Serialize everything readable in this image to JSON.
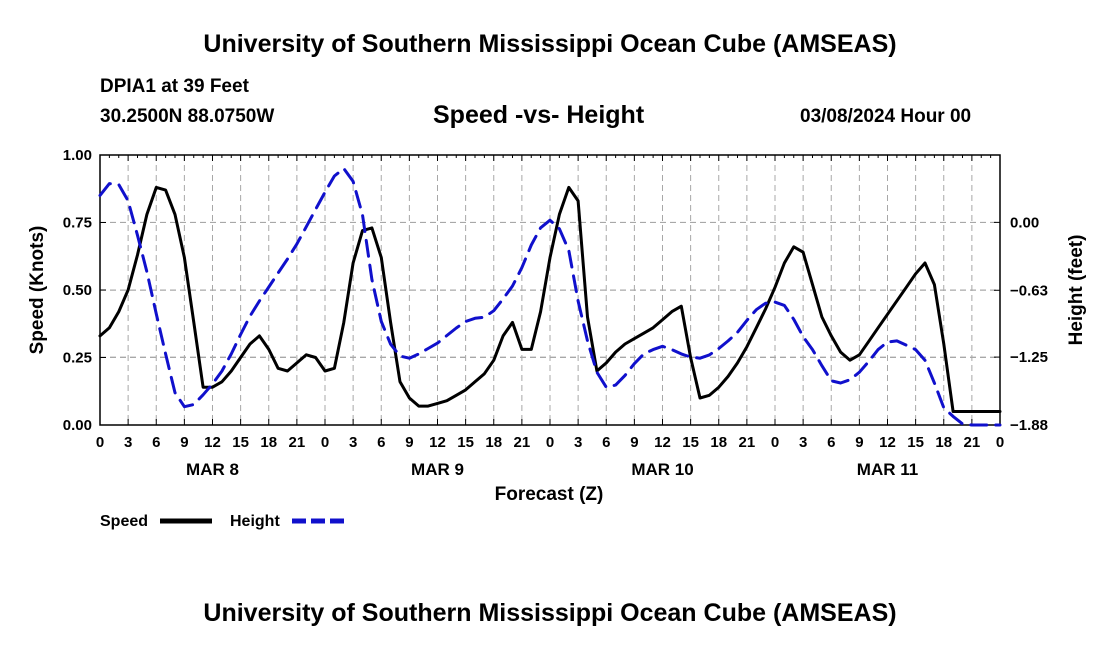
{
  "header": {
    "main_title": "University of Southern Mississippi Ocean Cube (AMSEAS)",
    "station": "DPIA1 at 39 Feet",
    "coords": "30.2500N  88.0750W",
    "date": "03/08/2024 Hour 00",
    "bottom_title": "University of Southern Mississippi Ocean Cube (AMSEAS)"
  },
  "chart_data": {
    "type": "line",
    "title": "Speed -vs- Height",
    "xlabel": "Forecast (Z)",
    "ylabel_left": "Speed (Knots)",
    "ylabel_right": "Height (feet)",
    "xlim": [
      0,
      96
    ],
    "ylim_left": [
      0,
      1.0
    ],
    "ylim_right": [
      -1.88,
      0.625
    ],
    "grid": true,
    "x_ticks": [
      0,
      3,
      6,
      9,
      12,
      15,
      18,
      21,
      24,
      27,
      30,
      33,
      36,
      39,
      42,
      45,
      48,
      51,
      54,
      57,
      60,
      63,
      66,
      69,
      72,
      75,
      78,
      81,
      84,
      87,
      90,
      93,
      96
    ],
    "x_tick_labels": [
      "0",
      "3",
      "6",
      "9",
      "12",
      "15",
      "18",
      "21",
      "0",
      "3",
      "6",
      "9",
      "12",
      "15",
      "18",
      "21",
      "0",
      "3",
      "6",
      "9",
      "12",
      "15",
      "18",
      "21",
      "0",
      "3",
      "6",
      "9",
      "12",
      "15",
      "18",
      "21",
      "0"
    ],
    "day_labels": [
      {
        "x": 12,
        "label": "MAR 8"
      },
      {
        "x": 36,
        "label": "MAR 9"
      },
      {
        "x": 60,
        "label": "MAR 10"
      },
      {
        "x": 84,
        "label": "MAR 11"
      }
    ],
    "left_ticks": [
      {
        "value": 0.0,
        "label": "0.00"
      },
      {
        "value": 0.25,
        "label": "0.25"
      },
      {
        "value": 0.5,
        "label": "0.50"
      },
      {
        "value": 0.75,
        "label": "0.75"
      },
      {
        "value": 1.0,
        "label": "1.00"
      }
    ],
    "right_ticks": [
      {
        "value": 0.0,
        "label": "0.00"
      },
      {
        "value": -0.63,
        "label": "−0.63"
      },
      {
        "value": -1.25,
        "label": "−1.25"
      },
      {
        "value": -1.88,
        "label": "−1.88"
      }
    ],
    "series": [
      {
        "name": "Speed",
        "axis": "left",
        "color": "#000000",
        "dash": "solid",
        "x": [
          0,
          1,
          2,
          3,
          4,
          5,
          6,
          7,
          8,
          9,
          10,
          11,
          12,
          13,
          14,
          15,
          16,
          17,
          18,
          19,
          20,
          21,
          22,
          23,
          24,
          25,
          26,
          27,
          28,
          29,
          30,
          31,
          32,
          33,
          34,
          35,
          36,
          37,
          38,
          39,
          40,
          41,
          42,
          43,
          44,
          45,
          46,
          47,
          48,
          49,
          50,
          51,
          52,
          53,
          54,
          55,
          56,
          57,
          58,
          59,
          60,
          61,
          62,
          63,
          64,
          65,
          66,
          67,
          68,
          69,
          70,
          71,
          72,
          73,
          74,
          75,
          76,
          77,
          78,
          79,
          80,
          81,
          82,
          83,
          84,
          85,
          86,
          87,
          88,
          89,
          90,
          91,
          92,
          93,
          94,
          95,
          96
        ],
        "values": [
          0.33,
          0.36,
          0.42,
          0.5,
          0.63,
          0.78,
          0.88,
          0.87,
          0.78,
          0.62,
          0.38,
          0.14,
          0.14,
          0.16,
          0.2,
          0.25,
          0.3,
          0.33,
          0.28,
          0.21,
          0.2,
          0.23,
          0.26,
          0.25,
          0.2,
          0.21,
          0.38,
          0.6,
          0.72,
          0.73,
          0.62,
          0.38,
          0.16,
          0.1,
          0.07,
          0.07,
          0.08,
          0.09,
          0.11,
          0.13,
          0.16,
          0.19,
          0.24,
          0.33,
          0.38,
          0.28,
          0.28,
          0.42,
          0.62,
          0.78,
          0.88,
          0.83,
          0.4,
          0.2,
          0.23,
          0.27,
          0.3,
          0.32,
          0.34,
          0.36,
          0.39,
          0.42,
          0.44,
          0.25,
          0.1,
          0.11,
          0.14,
          0.18,
          0.23,
          0.29,
          0.36,
          0.43,
          0.51,
          0.6,
          0.66,
          0.64,
          0.52,
          0.4,
          0.33,
          0.27,
          0.24,
          0.26,
          0.31,
          0.36,
          0.41,
          0.46,
          0.51,
          0.56,
          0.6,
          0.52,
          0.3,
          0.05,
          0.05,
          0.05,
          0.05,
          0.05,
          0.05
        ]
      },
      {
        "name": "Height",
        "axis": "right",
        "color": "#1010cc",
        "dash": "dashed",
        "x": [
          0,
          1,
          2,
          3,
          4,
          5,
          6,
          7,
          8,
          9,
          10,
          11,
          12,
          13,
          14,
          15,
          16,
          17,
          18,
          19,
          20,
          21,
          22,
          23,
          24,
          25,
          26,
          27,
          28,
          29,
          30,
          31,
          32,
          33,
          34,
          35,
          36,
          37,
          38,
          39,
          40,
          41,
          42,
          43,
          44,
          45,
          46,
          47,
          48,
          49,
          50,
          51,
          52,
          53,
          54,
          55,
          56,
          57,
          58,
          59,
          60,
          61,
          62,
          63,
          64,
          65,
          66,
          67,
          68,
          69,
          70,
          71,
          72,
          73,
          74,
          75,
          76,
          77,
          78,
          79,
          80,
          81,
          82,
          83,
          84,
          85,
          86,
          87,
          88,
          89,
          90,
          91,
          92,
          93,
          94,
          95,
          96
        ],
        "values": [
          0.25,
          0.36,
          0.35,
          0.2,
          -0.12,
          -0.46,
          -0.85,
          -1.22,
          -1.58,
          -1.71,
          -1.69,
          -1.6,
          -1.5,
          -1.38,
          -1.22,
          -1.04,
          -0.87,
          -0.73,
          -0.6,
          -0.47,
          -0.34,
          -0.2,
          -0.04,
          0.12,
          0.28,
          0.43,
          0.5,
          0.38,
          0.07,
          -0.53,
          -0.92,
          -1.13,
          -1.24,
          -1.26,
          -1.22,
          -1.17,
          -1.12,
          -1.05,
          -0.98,
          -0.92,
          -0.89,
          -0.88,
          -0.82,
          -0.71,
          -0.59,
          -0.42,
          -0.21,
          -0.05,
          0.02,
          -0.06,
          -0.26,
          -0.73,
          -1.1,
          -1.39,
          -1.53,
          -1.51,
          -1.42,
          -1.31,
          -1.22,
          -1.18,
          -1.15,
          -1.18,
          -1.22,
          -1.25,
          -1.26,
          -1.23,
          -1.17,
          -1.1,
          -1.02,
          -0.91,
          -0.81,
          -0.75,
          -0.74,
          -0.77,
          -0.9,
          -1.06,
          -1.18,
          -1.33,
          -1.47,
          -1.49,
          -1.46,
          -1.39,
          -1.29,
          -1.18,
          -1.11,
          -1.1,
          -1.14,
          -1.18,
          -1.28,
          -1.49,
          -1.72,
          -1.8,
          -1.87,
          -1.88,
          -1.88,
          -1.88,
          -1.88
        ]
      }
    ],
    "legend": [
      {
        "name": "Speed",
        "color": "#000000",
        "dash": "solid"
      },
      {
        "name": "Height",
        "color": "#1010cc",
        "dash": "dashed"
      }
    ],
    "legend_position": "bottom-left"
  }
}
